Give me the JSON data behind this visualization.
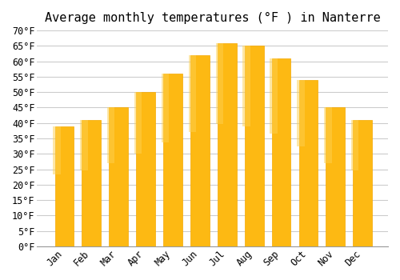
{
  "title": "Average monthly temperatures (°F ) in Nanterre",
  "months": [
    "Jan",
    "Feb",
    "Mar",
    "Apr",
    "May",
    "Jun",
    "Jul",
    "Aug",
    "Sep",
    "Oct",
    "Nov",
    "Dec"
  ],
  "values": [
    39,
    41,
    45,
    50,
    56,
    62,
    66,
    65,
    61,
    54,
    45,
    41
  ],
  "bar_color_main": "#FDB913",
  "bar_color_edge": "#F5A800",
  "background_color": "#FFFFFF",
  "grid_color": "#CCCCCC",
  "ylim": [
    0,
    70
  ],
  "yticks": [
    0,
    5,
    10,
    15,
    20,
    25,
    30,
    35,
    40,
    45,
    50,
    55,
    60,
    65,
    70
  ],
  "ylabel_suffix": "°F",
  "title_fontsize": 11,
  "tick_fontsize": 8.5,
  "font_family": "monospace"
}
